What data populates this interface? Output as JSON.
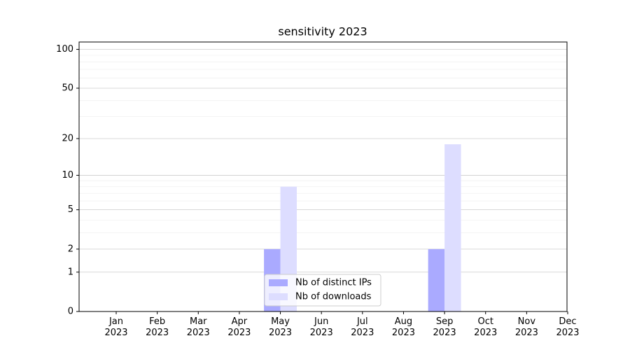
{
  "chart_data": {
    "type": "bar",
    "title": "sensitivity 2023",
    "categories": [
      "Jan\n2023",
      "Feb\n2023",
      "Mar\n2023",
      "Apr\n2023",
      "May\n2023",
      "Jun\n2023",
      "Jul\n2023",
      "Aug\n2023",
      "Sep\n2023",
      "Oct\n2023",
      "Nov\n2023",
      "Dec\n2023"
    ],
    "series": [
      {
        "name": "Nb of distinct IPs",
        "color": "#aaaaff",
        "values": [
          0,
          0,
          0,
          0,
          2,
          0,
          0,
          0,
          2,
          0,
          0,
          0
        ]
      },
      {
        "name": "Nb of downloads",
        "color": "#ddddff",
        "values": [
          0,
          0,
          0,
          0,
          8,
          0,
          0,
          0,
          18,
          0,
          0,
          0
        ]
      }
    ],
    "yscale": "log1p",
    "ylim": [
      0,
      114
    ],
    "yticks": [
      0,
      1,
      2,
      5,
      10,
      20,
      50,
      100
    ],
    "minor_yticks": [
      3,
      4,
      6,
      7,
      8,
      9,
      30,
      40,
      60,
      70,
      80,
      90
    ],
    "grid": true,
    "legend": "lower center"
  }
}
